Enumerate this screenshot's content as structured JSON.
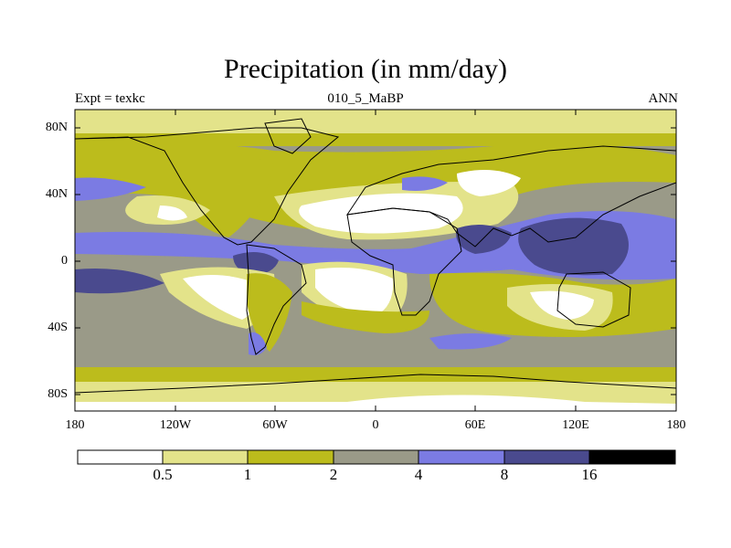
{
  "title": "Precipitation (in mm/day)",
  "subtitle_left": "Expt = texkc",
  "subtitle_center": "010_5_MaBP",
  "subtitle_right": "ANN",
  "lat_labels": [
    "80N",
    "40N",
    "0",
    "40S",
    "80S"
  ],
  "lon_labels": [
    "180",
    "120W",
    "60W",
    "0",
    "60E",
    "120E",
    "180"
  ],
  "colorbar": {
    "levels": [
      "0.5",
      "1",
      "2",
      "4",
      "8",
      "16"
    ],
    "colors": [
      "#ffffff",
      "#e3e38a",
      "#bcbc1c",
      "#9a9a88",
      "#7b7be3",
      "#4a4a8e",
      "#000000"
    ]
  }
}
